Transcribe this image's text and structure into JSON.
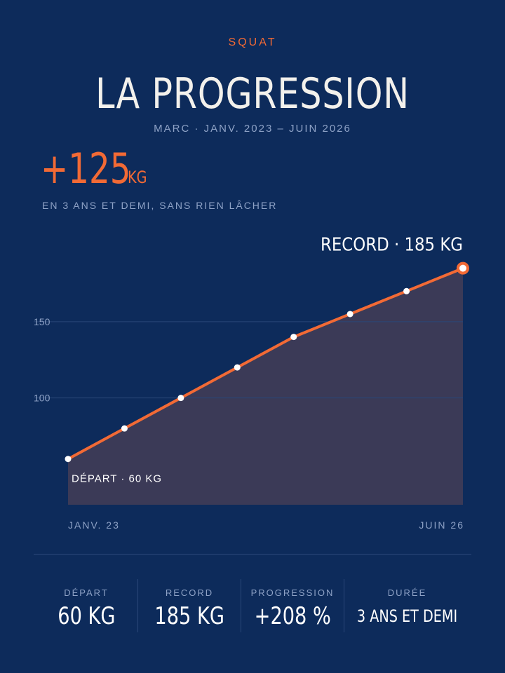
{
  "header": {
    "kicker": "SQUAT",
    "title": "LA PROGRESSION",
    "subtitle": "MARC · JANV. 2023 – JUIN 2026"
  },
  "highlight": {
    "value": "+125",
    "unit": "KG",
    "note": "EN 3 ANS ET DEMI, SANS RIEN LÂCHER"
  },
  "chart_data": {
    "type": "area",
    "x": [
      "JANV. 23",
      "",
      "",
      "",
      "",
      "",
      "",
      "JUIN 26"
    ],
    "values": [
      60,
      80,
      100,
      120,
      140,
      155,
      170,
      185
    ],
    "ylim": [
      30,
      200
    ],
    "yticks": [
      100,
      150
    ],
    "grid": true,
    "annotations": {
      "start": "DÉPART · 60 KG",
      "record": "RECORD · 185 KG"
    },
    "colors": {
      "line": "#f26a35",
      "area": "#3b3a57",
      "grid": "#2a4778"
    }
  },
  "stats": [
    {
      "label": "DÉPART",
      "value": "60 KG"
    },
    {
      "label": "RECORD",
      "value": "185 KG"
    },
    {
      "label": "PROGRESSION",
      "value": "+208 %"
    },
    {
      "label": "DURÉE",
      "value": "3 ANS ET DEMI"
    }
  ]
}
